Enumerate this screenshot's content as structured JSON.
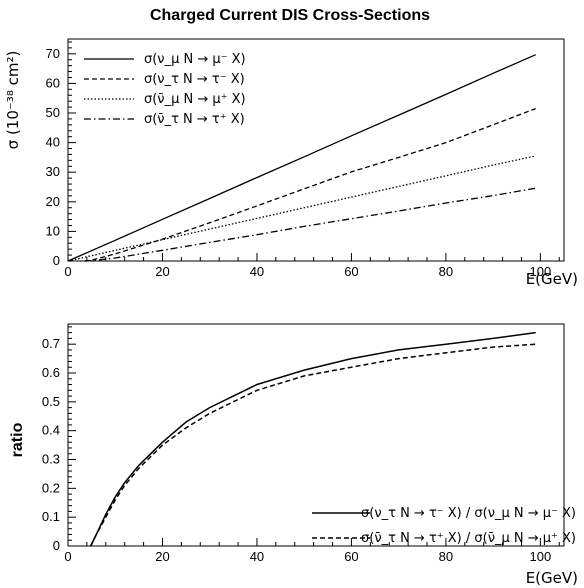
{
  "chart_data": [
    {
      "type": "line",
      "title": "Charged Current DIS Cross-Sections",
      "xlabel": "E(GeV)",
      "ylabel": "σ (10⁻³⁸ cm²)",
      "xlim": [
        0,
        105
      ],
      "ylim": [
        0,
        75
      ],
      "xticks": [
        "0",
        "20",
        "40",
        "60",
        "80",
        "100"
      ],
      "yticks": [
        "0",
        "10",
        "20",
        "30",
        "40",
        "50",
        "60",
        "70"
      ],
      "legend_position": "top-left",
      "series": [
        {
          "name": "σ(ν_μ N → μ⁻ X)",
          "style": "solid",
          "x": [
            0,
            10,
            20,
            30,
            40,
            50,
            60,
            70,
            80,
            90,
            99
          ],
          "y": [
            0,
            7.0,
            14.1,
            21.1,
            28.2,
            35.2,
            42.3,
            49.3,
            56.3,
            63.4,
            69.7
          ]
        },
        {
          "name": "σ(ν_τ N → τ⁻ X)",
          "style": "dashed",
          "x": [
            3.5,
            5,
            10,
            20,
            30,
            40,
            50,
            60,
            70,
            80,
            90,
            99
          ],
          "y": [
            0,
            0.3,
            2.4,
            7.4,
            12.9,
            18.6,
            24.4,
            30.1,
            35.0,
            40.0,
            46.0,
            51.5
          ]
        },
        {
          "name": "σ(ν̄_μ N → μ⁺ X)",
          "style": "dotted",
          "x": [
            0,
            10,
            20,
            30,
            40,
            50,
            60,
            70,
            80,
            90,
            99
          ],
          "y": [
            0,
            3.6,
            7.2,
            10.8,
            14.4,
            18.0,
            21.6,
            25.2,
            28.8,
            32.4,
            35.5
          ]
        },
        {
          "name": "σ(ν̄_τ N → τ⁺ X)",
          "style": "dashdot",
          "x": [
            3.5,
            5,
            10,
            20,
            30,
            40,
            50,
            60,
            70,
            80,
            90,
            99
          ],
          "y": [
            0,
            0.1,
            1.0,
            3.6,
            6.3,
            8.9,
            11.7,
            14.3,
            16.9,
            19.6,
            22.1,
            24.6
          ]
        }
      ]
    },
    {
      "type": "line",
      "xlabel": "E(GeV)",
      "ylabel": "ratio",
      "xlim": [
        0,
        105
      ],
      "ylim": [
        0,
        0.77
      ],
      "xticks": [
        "0",
        "20",
        "40",
        "60",
        "80",
        "100"
      ],
      "yticks": [
        "0",
        "0.1",
        "0.2",
        "0.3",
        "0.4",
        "0.5",
        "0.6",
        "0.7"
      ],
      "legend_position": "bottom-right",
      "series": [
        {
          "name": "σ(ν_τ N → τ⁻ X) / σ(ν_μ N → μ⁻ X)",
          "style": "solid",
          "x": [
            4.8,
            6,
            8,
            10,
            12,
            15,
            20,
            25,
            30,
            35,
            40,
            50,
            60,
            70,
            80,
            90,
            99
          ],
          "y": [
            0,
            0.04,
            0.11,
            0.17,
            0.22,
            0.28,
            0.36,
            0.43,
            0.48,
            0.52,
            0.56,
            0.61,
            0.65,
            0.68,
            0.7,
            0.72,
            0.74
          ]
        },
        {
          "name": "σ(ν̄_τ N → τ⁺ X) / σ(ν̄_μ N → μ⁺ X)",
          "style": "dashed",
          "x": [
            4.8,
            6,
            8,
            10,
            12,
            15,
            20,
            25,
            30,
            35,
            40,
            50,
            60,
            70,
            80,
            90,
            99
          ],
          "y": [
            0,
            0.04,
            0.1,
            0.16,
            0.21,
            0.27,
            0.35,
            0.41,
            0.46,
            0.5,
            0.54,
            0.59,
            0.62,
            0.65,
            0.67,
            0.69,
            0.7
          ]
        }
      ]
    }
  ]
}
